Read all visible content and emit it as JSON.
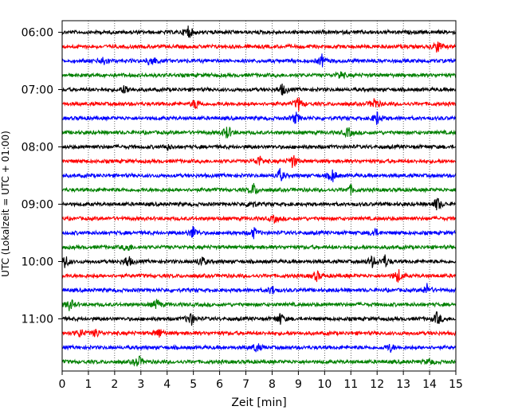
{
  "chart_data": {
    "type": "line",
    "title": "",
    "xlabel": "Zeit  [min]",
    "ylabel": "UTC (Lokalzeit = UTC + 01:00)",
    "xlim": [
      0,
      15
    ],
    "x_ticks": [
      "0",
      "1",
      "2",
      "3",
      "4",
      "5",
      "6",
      "7",
      "8",
      "9",
      "10",
      "11",
      "12",
      "13",
      "14",
      "15"
    ],
    "y_ticks": [
      "06:00",
      "07:00",
      "08:00",
      "09:00",
      "10:00",
      "11:00"
    ],
    "grid": "vertical dotted at each minute",
    "trace_start_utc": "06:00",
    "trace_length_min": 15,
    "trace_colors": [
      "#000000",
      "#ff0000",
      "#0000ff",
      "#008000"
    ],
    "series": [
      {
        "start": "06:00",
        "color": "#000000",
        "events": [
          [
            4.8,
            1.0
          ]
        ]
      },
      {
        "start": "06:15",
        "color": "#ff0000",
        "events": [
          [
            14.3,
            0.9
          ]
        ]
      },
      {
        "start": "06:30",
        "color": "#0000ff",
        "events": [
          [
            1.6,
            0.7
          ],
          [
            3.4,
            1.0
          ],
          [
            9.9,
            0.8
          ]
        ]
      },
      {
        "start": "06:45",
        "color": "#008000",
        "events": [
          [
            10.6,
            0.6
          ]
        ]
      },
      {
        "start": "07:00",
        "color": "#000000",
        "events": [
          [
            2.4,
            0.7
          ],
          [
            8.4,
            0.8
          ]
        ]
      },
      {
        "start": "07:15",
        "color": "#ff0000",
        "events": [
          [
            5.1,
            0.8
          ],
          [
            9.0,
            1.0
          ],
          [
            11.9,
            0.9
          ]
        ]
      },
      {
        "start": "07:30",
        "color": "#0000ff",
        "events": [
          [
            8.9,
            0.8
          ],
          [
            12.0,
            0.9
          ]
        ]
      },
      {
        "start": "07:45",
        "color": "#008000",
        "events": [
          [
            6.3,
            1.0
          ],
          [
            10.9,
            0.7
          ]
        ]
      },
      {
        "start": "08:00",
        "color": "#000000",
        "events": [
          [
            4.0,
            0.4
          ]
        ]
      },
      {
        "start": "08:15",
        "color": "#ff0000",
        "events": [
          [
            7.5,
            0.8
          ],
          [
            8.8,
            1.0
          ]
        ]
      },
      {
        "start": "08:30",
        "color": "#0000ff",
        "events": [
          [
            8.3,
            0.9
          ],
          [
            10.3,
            0.9
          ]
        ]
      },
      {
        "start": "08:45",
        "color": "#008000",
        "events": [
          [
            7.3,
            0.9
          ],
          [
            11.0,
            0.6
          ]
        ]
      },
      {
        "start": "09:00",
        "color": "#000000",
        "events": [
          [
            7.2,
            0.6
          ],
          [
            14.3,
            1.0
          ]
        ]
      },
      {
        "start": "09:15",
        "color": "#ff0000",
        "events": [
          [
            8.1,
            0.5
          ]
        ]
      },
      {
        "start": "09:30",
        "color": "#0000ff",
        "events": [
          [
            5.0,
            1.0
          ],
          [
            7.3,
            0.7
          ],
          [
            11.9,
            0.6
          ]
        ]
      },
      {
        "start": "09:45",
        "color": "#008000",
        "events": [
          [
            2.5,
            0.6
          ]
        ]
      },
      {
        "start": "10:00",
        "color": "#000000",
        "events": [
          [
            0.1,
            1.0
          ],
          [
            2.5,
            0.9
          ],
          [
            5.3,
            0.8
          ],
          [
            11.8,
            0.8
          ],
          [
            12.3,
            0.9
          ]
        ]
      },
      {
        "start": "10:15",
        "color": "#ff0000",
        "events": [
          [
            9.7,
            0.7
          ],
          [
            12.8,
            1.0
          ]
        ]
      },
      {
        "start": "10:30",
        "color": "#0000ff",
        "events": [
          [
            8.0,
            0.6
          ],
          [
            13.9,
            0.8
          ]
        ]
      },
      {
        "start": "10:45",
        "color": "#008000",
        "events": [
          [
            0.3,
            0.9
          ],
          [
            3.6,
            0.7
          ]
        ]
      },
      {
        "start": "11:00",
        "color": "#000000",
        "events": [
          [
            4.9,
            1.0
          ],
          [
            8.3,
            0.8
          ],
          [
            14.3,
            1.0
          ]
        ]
      },
      {
        "start": "11:15",
        "color": "#ff0000",
        "events": [
          [
            0.7,
            0.6
          ],
          [
            1.3,
            0.6
          ],
          [
            3.7,
            0.7
          ]
        ]
      },
      {
        "start": "11:30",
        "color": "#0000ff",
        "events": [
          [
            7.4,
            0.7
          ],
          [
            12.5,
            0.6
          ]
        ]
      },
      {
        "start": "11:45",
        "color": "#008000",
        "events": [
          [
            2.9,
            0.9
          ],
          [
            14.0,
            0.4
          ]
        ]
      }
    ]
  }
}
